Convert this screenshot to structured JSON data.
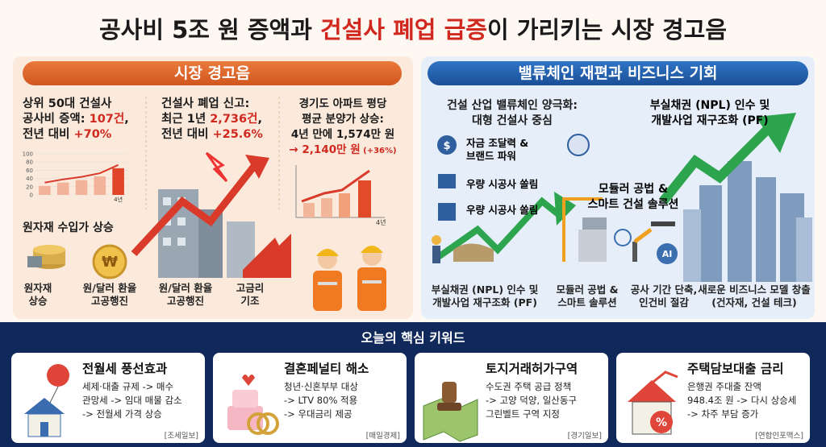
{
  "title": {
    "parts": [
      "공사비 5조 원 증액과 ",
      "건설사 폐업 급증",
      "이 가리키는 시장 경고음"
    ]
  },
  "warning": {
    "header": "시장 경고음",
    "cost": {
      "lines": [
        [
          "상위 50대 건설사"
        ],
        [
          "공사비 증액: ",
          "107건",
          ","
        ],
        [
          "전년 대비 ",
          "+70%"
        ]
      ],
      "chart": {
        "yticks": [
          0,
          20,
          40,
          60,
          80,
          100
        ],
        "ylim": [
          0,
          100
        ],
        "values": [
          22,
          30,
          36,
          45,
          65
        ],
        "x_label": "4년"
      }
    },
    "materials": {
      "heading": "원자재 수입가 상승",
      "icons": [
        [
          "원자재",
          "상승"
        ],
        [
          "원/달러 환율",
          "고공행진"
        ]
      ]
    },
    "closure": {
      "lines": [
        [
          "건설사 폐업 신고:"
        ],
        [
          "최근 1년 ",
          "2,736건",
          ","
        ],
        [
          "전년 대비 ",
          "+25.6%"
        ]
      ],
      "icons": [
        [
          "원/달러 환율",
          "고공행진"
        ],
        [
          "고금리",
          "기조"
        ]
      ]
    },
    "price": {
      "lines": [
        [
          "경기도 아파트 평당"
        ],
        [
          "평균 분양가 상승:"
        ],
        [
          "4년 만에 1,574만 원"
        ],
        [
          "→ 2,140만 원",
          " (+36%)"
        ]
      ],
      "chart": {
        "x_label": "4년"
      }
    }
  },
  "value_chain": {
    "header": "밸류체인 재편과 비즈니스 기회",
    "heading": [
      "건설 산업 밸류체인 양극화:",
      "대형 건설사 중심"
    ],
    "items": [
      [
        "자금 조달력 &",
        "브랜드 파워"
      ],
      [
        "우량 시공사 쏠림"
      ],
      [
        "우량 시공사 쏠림"
      ]
    ],
    "npl": [
      "부실채권 (NPL) 인수 및",
      "개발사업 재구조화 (PF)"
    ],
    "modular": [
      "모듈러 공법 &",
      "스마트 건설 솔루션"
    ],
    "bottom": [
      [
        "부실채권 (NPL) 인수 및",
        "개발사업 재구조화 (PF)"
      ],
      [
        "모듈러 공법 &",
        "스마트 솔루션"
      ],
      [
        "공사 기간 단축,",
        "인건비 절감"
      ],
      [
        "새로운 비즈니스 모델 창출",
        "(건자재, 건설 테크)"
      ]
    ]
  },
  "keywords": {
    "heading": "오늘의 핵심 키워드",
    "cards": [
      {
        "title": "전월세 풍선효과",
        "lines": [
          "세제·대출 규제 -> 매수",
          "관망세 -> 임대 매물 감소",
          "-> 전월세 가격 상승"
        ],
        "source": "[조세일보]"
      },
      {
        "title": "결혼페널티 해소",
        "lines": [
          "청년·신혼부부 대상",
          "-> LTV 80% 적용",
          "-> 우대금리 제공"
        ],
        "source": "[매일경제]"
      },
      {
        "title": "토지거래허가구역",
        "lines": [
          "수도권 주택 공급 정책",
          "-> 고양 덕양, 일산동구",
          "그린벨트 구역 지정"
        ],
        "source": "[경기일보]"
      },
      {
        "title": "주택담보대출 금리",
        "lines": [
          "은행권 주대출 잔액",
          "948.4조 원 -> 다시 상승세",
          "-> 차주 부담 증가"
        ],
        "source": "[연합인포맥스]"
      }
    ]
  }
}
